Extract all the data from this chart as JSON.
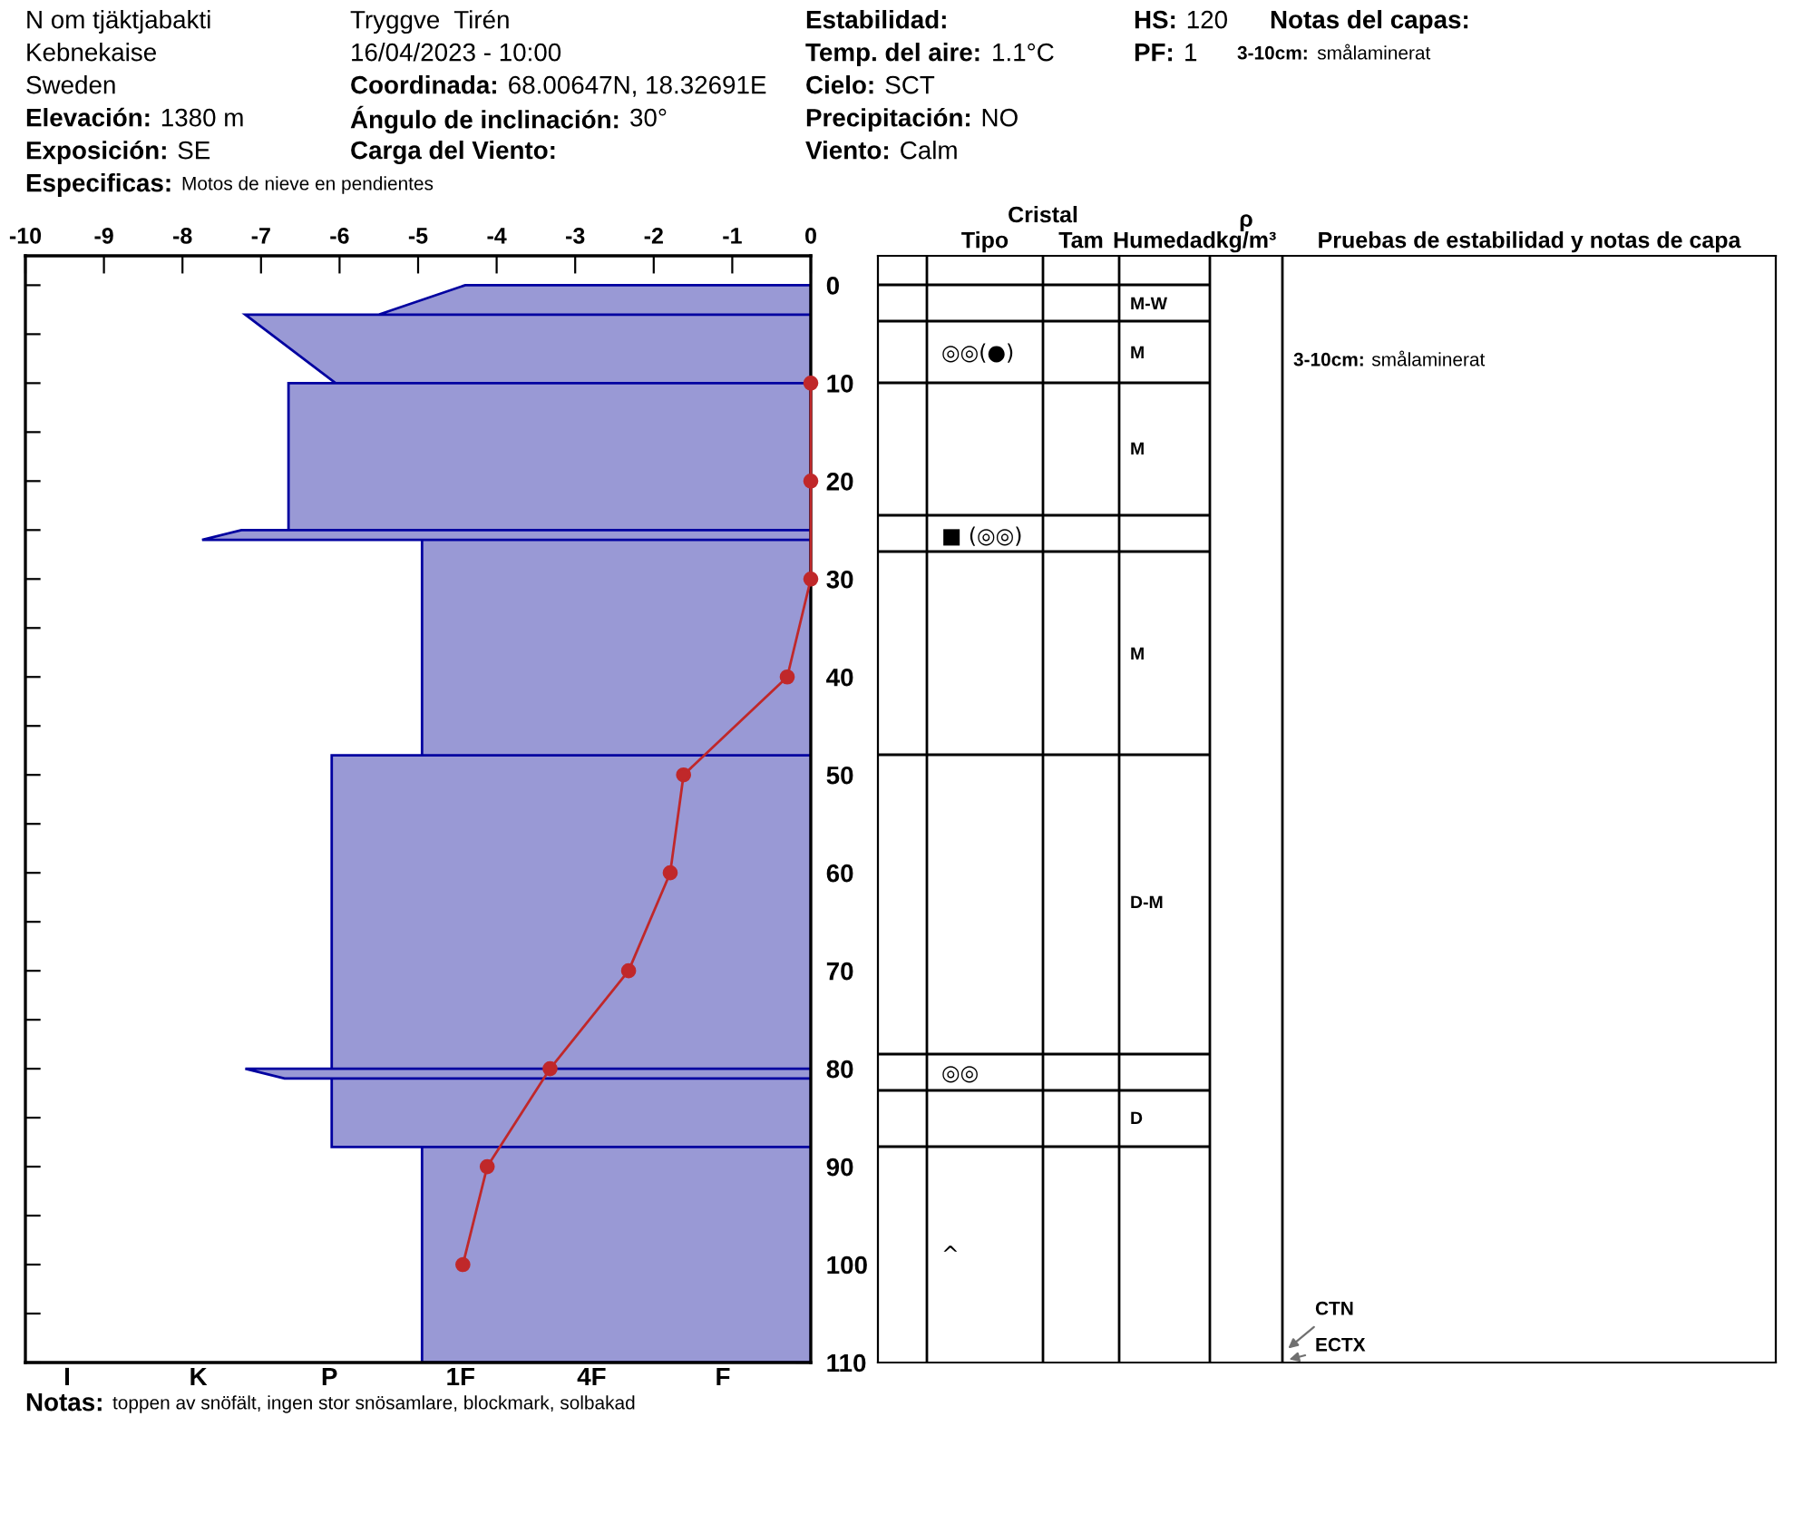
{
  "chart_data": [
    {
      "type": "other",
      "annotations": [
        "N om tjäktjabakti",
        "Kebnekaise",
        "Sweden",
        "Elevación: 1380 m",
        "Exposición: SE",
        "Especificas: Motos de nieve en pendientes",
        "Tryggve  Tirén",
        "16/04/2023 - 10:00",
        "Coordinada: 68.00647N, 18.32691E",
        "Ángulo de inclinación: 30°",
        "Carga del Viento:",
        "Estabilidad:",
        "Temp. del aire: 1.1°C",
        "Cielo: SCT",
        "Precipitación: NO",
        "Viento: Calm",
        "HS:120",
        "PF: 1",
        "Notas del capas:",
        "3-10cm: smålaminerat",
        "Notas: toppen av snöfält, ingen stor snösamlare, blockmark, solbakad"
      ]
    },
    {
      "type": "area",
      "xlim": [
        -10,
        0
      ],
      "ylim": [
        110,
        -3
      ],
      "xticks": [
        -10,
        -9,
        -8,
        -7,
        -6,
        -5,
        -4,
        -3,
        -2,
        -1,
        0
      ],
      "annotations": [
        "I",
        "K",
        "P",
        "1F",
        "4F",
        "F"
      ],
      "yticks": [
        0,
        {
          "value": 5,
          "label": null
        },
        10,
        {
          "value": 15,
          "label": null
        },
        20,
        {
          "value": 25,
          "label": null
        },
        30,
        {
          "value": 35,
          "label": null
        },
        40,
        {
          "value": 45,
          "label": null
        },
        50,
        {
          "value": 55,
          "label": null
        },
        60,
        {
          "value": 65,
          "label": null
        },
        70,
        {
          "value": 75,
          "label": null
        },
        80,
        {
          "value": 85,
          "label": null
        },
        90,
        {
          "value": 95,
          "label": null
        },
        100,
        {
          "value": 105,
          "label": null
        },
        110
      ],
      "series": [
        {
          "type": "area",
          "color": "#9999d5",
          "x": [
            0,
            -4.4,
            -5.5,
            0,
            -7.2,
            -6.05,
            0,
            -6.65,
            -6.65,
            0,
            -7.25,
            -7.75,
            0,
            -4.95,
            -4.95,
            0,
            -6.1,
            -6.1,
            0,
            -7.2,
            -6.7,
            0,
            -6.1,
            -6.1,
            0,
            -4.95,
            -4.95,
            0
          ],
          "values": [
            0,
            0,
            3,
            3,
            3,
            10,
            10,
            10,
            25,
            25,
            25,
            26,
            26,
            26,
            48,
            48,
            48,
            80,
            80,
            80,
            81,
            81,
            81,
            88,
            88,
            88,
            110,
            110
          ]
        },
        {
          "type": "line",
          "color": "#c0282a",
          "marker": "circle",
          "x": [
            0,
            0,
            0,
            -0.3,
            -1.62,
            -1.79,
            -2.32,
            -3.32,
            -4.12,
            -4.43
          ],
          "values": [
            10,
            20,
            30,
            40,
            50,
            60,
            70,
            80,
            90,
            100
          ]
        }
      ]
    },
    {
      "type": "other",
      "xlabel": "Cristal",
      "categories": [
        null,
        "Tipo",
        "Tam",
        "Humedad",
        "ρ\nkg/m³",
        "Pruebas de estabilidad y notas de capa"
      ],
      "annotations": [
        "M-W",
        "◎◎(●)",
        "M",
        "M",
        "■ (◎◎)",
        "M",
        "D-M",
        "◎◎",
        "D",
        "^",
        "3-10cm: smålaminerat",
        "CTN",
        "ECTX"
      ]
    }
  ]
}
